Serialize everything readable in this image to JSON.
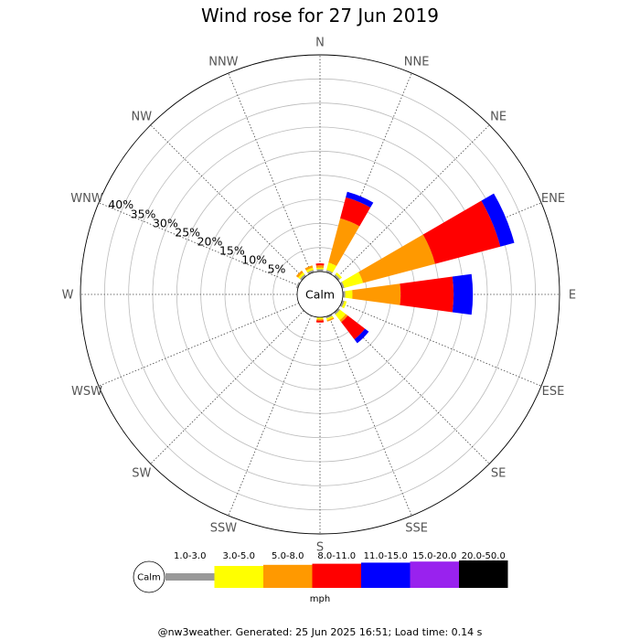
{
  "chart_data": {
    "type": "wind-rose",
    "title": "Wind rose for 27 Jun 2019",
    "directions": [
      "N",
      "NNE",
      "NE",
      "ENE",
      "E",
      "ESE",
      "SE",
      "SSE",
      "S",
      "SSW",
      "SW",
      "WSW",
      "W",
      "WNW",
      "NW",
      "NNW"
    ],
    "radial_unit": "%",
    "radial_ticks": [
      5,
      10,
      15,
      20,
      25,
      30,
      35,
      40
    ],
    "radial_tick_labels": [
      "5%",
      "10%",
      "15%",
      "20%",
      "25%",
      "30%",
      "35%",
      "40%"
    ],
    "radial_max": 45,
    "grid": true,
    "calm_label": "Calm",
    "speed_unit": "mph",
    "speed_bins": [
      {
        "label": "1.0-3.0",
        "color": "#999999"
      },
      {
        "label": "3.0-5.0",
        "color": "#ffff00"
      },
      {
        "label": "5.0-8.0",
        "color": "#ff9900"
      },
      {
        "label": "8.0-11.0",
        "color": "#ff0000"
      },
      {
        "label": "11.0-15.0",
        "color": "#0000ff"
      },
      {
        "label": "15.0-20.0",
        "color": "#9922ee"
      },
      {
        "label": "20.0-50.0",
        "color": "#000000"
      }
    ],
    "series": [
      {
        "direction": "N",
        "values": [
          0.5,
          0.3,
          0.5,
          0.4,
          0,
          0,
          0
        ]
      },
      {
        "direction": "NNE",
        "values": [
          0.5,
          1.6,
          9.5,
          4.5,
          1.2,
          0,
          0
        ]
      },
      {
        "direction": "NE",
        "values": [
          0.5,
          0.5,
          0,
          0,
          0,
          0,
          0
        ]
      },
      {
        "direction": "ENE",
        "values": [
          0.5,
          4.0,
          15.5,
          14.0,
          3.0,
          0,
          0
        ]
      },
      {
        "direction": "E",
        "values": [
          0.5,
          1.5,
          10.0,
          11.0,
          4.0,
          0,
          0
        ]
      },
      {
        "direction": "ESE",
        "values": [
          0.5,
          0.5,
          0,
          0,
          0,
          0,
          0
        ]
      },
      {
        "direction": "SE",
        "values": [
          0.5,
          1.5,
          0.5,
          4.5,
          1.0,
          0,
          0
        ]
      },
      {
        "direction": "SSE",
        "values": [
          0.4,
          0.4,
          0.3,
          0,
          0,
          0,
          0
        ]
      },
      {
        "direction": "S",
        "values": [
          0,
          0.4,
          0.3,
          0.4,
          0,
          0,
          0
        ]
      },
      {
        "direction": "SSW",
        "values": [
          0,
          0,
          0,
          0,
          0,
          0,
          0
        ]
      },
      {
        "direction": "SW",
        "values": [
          0,
          0,
          0,
          0,
          0,
          0,
          0
        ]
      },
      {
        "direction": "WSW",
        "values": [
          0,
          0,
          0,
          0,
          0,
          0,
          0
        ]
      },
      {
        "direction": "W",
        "values": [
          0,
          0,
          0,
          0,
          0,
          0,
          0
        ]
      },
      {
        "direction": "WNW",
        "values": [
          0.4,
          0,
          0,
          0,
          0,
          0,
          0
        ]
      },
      {
        "direction": "NW",
        "values": [
          0.5,
          0.5,
          0.5,
          0,
          0,
          0,
          0
        ]
      },
      {
        "direction": "NNW",
        "values": [
          0.5,
          0.5,
          0.5,
          0,
          0,
          0,
          0
        ]
      }
    ]
  },
  "footer": "@nw3weather. Generated: 25 Jun 2025 16:51; Load time: 0.14 s"
}
